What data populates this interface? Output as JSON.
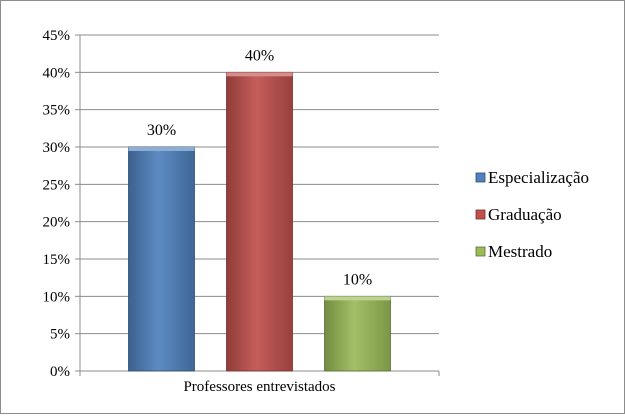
{
  "chart_data": {
    "type": "bar",
    "categories": [
      "Professores entrevistados"
    ],
    "series": [
      {
        "name": "Especialização",
        "values": [
          30
        ],
        "color": "#4f81bd"
      },
      {
        "name": "Graduação",
        "values": [
          40
        ],
        "color": "#c0504d"
      },
      {
        "name": "Mestrado",
        "values": [
          10
        ],
        "color": "#9bbb59"
      }
    ],
    "data_labels": [
      "30%",
      "40%",
      "10%"
    ],
    "y_ticks": [
      "0%",
      "5%",
      "10%",
      "15%",
      "20%",
      "25%",
      "30%",
      "35%",
      "40%",
      "45%"
    ],
    "ylim": [
      0,
      45
    ],
    "grid": true,
    "legend_position": "right",
    "title": "",
    "xlabel": "",
    "ylabel": ""
  }
}
